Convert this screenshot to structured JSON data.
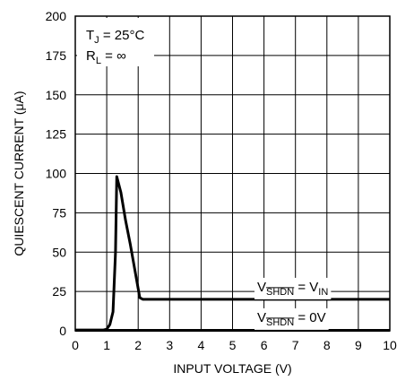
{
  "chart_data": {
    "type": "line",
    "xlabel": "INPUT VOLTAGE (V)",
    "ylabel": "QUIESCENT CURRENT (μA)",
    "xlim": [
      0,
      10
    ],
    "ylim": [
      0,
      200
    ],
    "x_ticks": [
      "0",
      "1",
      "2",
      "3",
      "4",
      "5",
      "6",
      "7",
      "8",
      "9",
      "10"
    ],
    "y_ticks": [
      "0",
      "25",
      "50",
      "75",
      "100",
      "125",
      "150",
      "175",
      "200"
    ],
    "grid": true,
    "conditions": {
      "tj": {
        "main": "T",
        "sub": "J",
        "rest": " = 25°C"
      },
      "rl": {
        "main": "R",
        "sub": "L",
        "rest": " = ∞"
      }
    },
    "series": [
      {
        "label": {
          "main": "V",
          "sub": "SHDN",
          "rest": " = V",
          "sub2": "IN"
        },
        "points": [
          [
            0,
            0.5
          ],
          [
            0.9,
            0.5
          ],
          [
            1.0,
            1
          ],
          [
            1.1,
            4
          ],
          [
            1.2,
            12
          ],
          [
            1.28,
            50
          ],
          [
            1.32,
            98
          ],
          [
            1.45,
            88
          ],
          [
            1.6,
            70
          ],
          [
            1.75,
            55
          ],
          [
            2.05,
            21
          ],
          [
            2.15,
            20
          ],
          [
            10,
            20
          ]
        ]
      },
      {
        "label": {
          "main": "V",
          "sub": "SHDN",
          "rest": " = 0V"
        },
        "points": [
          [
            0,
            0.3
          ],
          [
            10,
            0.3
          ]
        ]
      }
    ]
  }
}
